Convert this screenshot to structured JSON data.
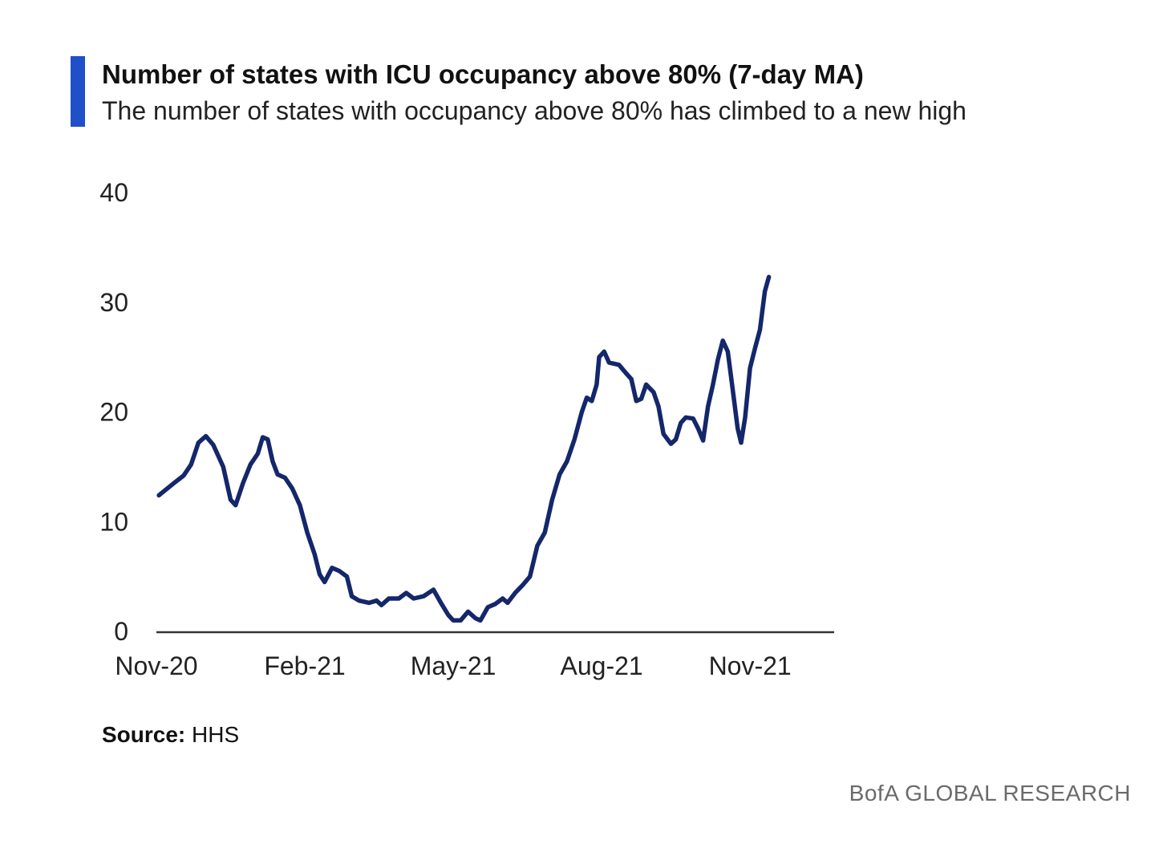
{
  "header": {
    "title": "Number of states with ICU occupancy above 80% (7-day MA)",
    "subtitle": "The number of states with occupancy above 80% has climbed to a new high"
  },
  "footer": {
    "source_label": "Source:",
    "source_value": "HHS",
    "brand": "BofA GLOBAL RESEARCH"
  },
  "colors": {
    "accent": "#1f4fc9",
    "line": "#14276b",
    "axis": "#333333"
  },
  "chart_data": {
    "type": "line",
    "title": "Number of states with ICU occupancy above 80% (7-day MA)",
    "xlabel": "",
    "ylabel": "",
    "ylim": [
      0,
      40
    ],
    "yticks": [
      "0",
      "10",
      "20",
      "30",
      "40"
    ],
    "xticks": [
      "Nov-20",
      "Feb-21",
      "May-21",
      "Aug-21",
      "Nov-21"
    ],
    "grid": false,
    "series": [
      {
        "values": [
          [
            0.05,
            12.4
          ],
          [
            0.35,
            13.5
          ],
          [
            0.55,
            14.2
          ],
          [
            0.7,
            15.2
          ],
          [
            0.85,
            17.2
          ],
          [
            1.0,
            17.8
          ],
          [
            1.15,
            17.0
          ],
          [
            1.35,
            15.0
          ],
          [
            1.5,
            12.0
          ],
          [
            1.6,
            11.5
          ],
          [
            1.75,
            13.5
          ],
          [
            1.9,
            15.2
          ],
          [
            2.05,
            16.2
          ],
          [
            2.15,
            17.7
          ],
          [
            2.25,
            17.5
          ],
          [
            2.35,
            15.5
          ],
          [
            2.45,
            14.3
          ],
          [
            2.6,
            14.0
          ],
          [
            2.75,
            13.0
          ],
          [
            2.9,
            11.5
          ],
          [
            3.05,
            9.0
          ],
          [
            3.2,
            7.0
          ],
          [
            3.3,
            5.2
          ],
          [
            3.4,
            4.5
          ],
          [
            3.55,
            5.8
          ],
          [
            3.7,
            5.5
          ],
          [
            3.85,
            5.0
          ],
          [
            3.95,
            3.2
          ],
          [
            4.1,
            2.8
          ],
          [
            4.3,
            2.6
          ],
          [
            4.45,
            2.8
          ],
          [
            4.55,
            2.4
          ],
          [
            4.7,
            3.0
          ],
          [
            4.9,
            3.0
          ],
          [
            5.05,
            3.5
          ],
          [
            5.2,
            3.0
          ],
          [
            5.4,
            3.2
          ],
          [
            5.6,
            3.8
          ],
          [
            5.75,
            2.6
          ],
          [
            5.9,
            1.5
          ],
          [
            6.0,
            1.0
          ],
          [
            6.15,
            1.0
          ],
          [
            6.3,
            1.8
          ],
          [
            6.45,
            1.2
          ],
          [
            6.55,
            1.0
          ],
          [
            6.7,
            2.2
          ],
          [
            6.85,
            2.5
          ],
          [
            7.0,
            3.0
          ],
          [
            7.1,
            2.6
          ],
          [
            7.25,
            3.5
          ],
          [
            7.4,
            4.2
          ],
          [
            7.55,
            5.0
          ],
          [
            7.7,
            7.8
          ],
          [
            7.85,
            9.0
          ],
          [
            8.0,
            12.0
          ],
          [
            8.15,
            14.3
          ],
          [
            8.3,
            15.5
          ],
          [
            8.45,
            17.5
          ],
          [
            8.6,
            20.0
          ],
          [
            8.7,
            21.3
          ],
          [
            8.8,
            21.0
          ],
          [
            8.9,
            22.5
          ],
          [
            8.95,
            25.0
          ],
          [
            9.05,
            25.5
          ],
          [
            9.15,
            24.5
          ],
          [
            9.35,
            24.3
          ],
          [
            9.5,
            23.5
          ],
          [
            9.6,
            23.0
          ],
          [
            9.7,
            21.0
          ],
          [
            9.8,
            21.2
          ],
          [
            9.9,
            22.5
          ],
          [
            10.05,
            21.8
          ],
          [
            10.15,
            20.5
          ],
          [
            10.25,
            18.0
          ],
          [
            10.4,
            17.1
          ],
          [
            10.5,
            17.5
          ],
          [
            10.6,
            19.0
          ],
          [
            10.7,
            19.5
          ],
          [
            10.85,
            19.4
          ],
          [
            10.95,
            18.5
          ],
          [
            11.05,
            17.4
          ],
          [
            11.15,
            20.5
          ],
          [
            11.25,
            22.5
          ],
          [
            11.35,
            24.8
          ],
          [
            11.45,
            26.5
          ],
          [
            11.55,
            25.5
          ],
          [
            11.65,
            22.0
          ],
          [
            11.75,
            18.5
          ],
          [
            11.82,
            17.2
          ],
          [
            11.9,
            19.5
          ],
          [
            12.0,
            24.0
          ],
          [
            12.1,
            25.8
          ],
          [
            12.2,
            27.5
          ],
          [
            12.3,
            31.0
          ],
          [
            12.38,
            32.3
          ]
        ]
      }
    ]
  }
}
